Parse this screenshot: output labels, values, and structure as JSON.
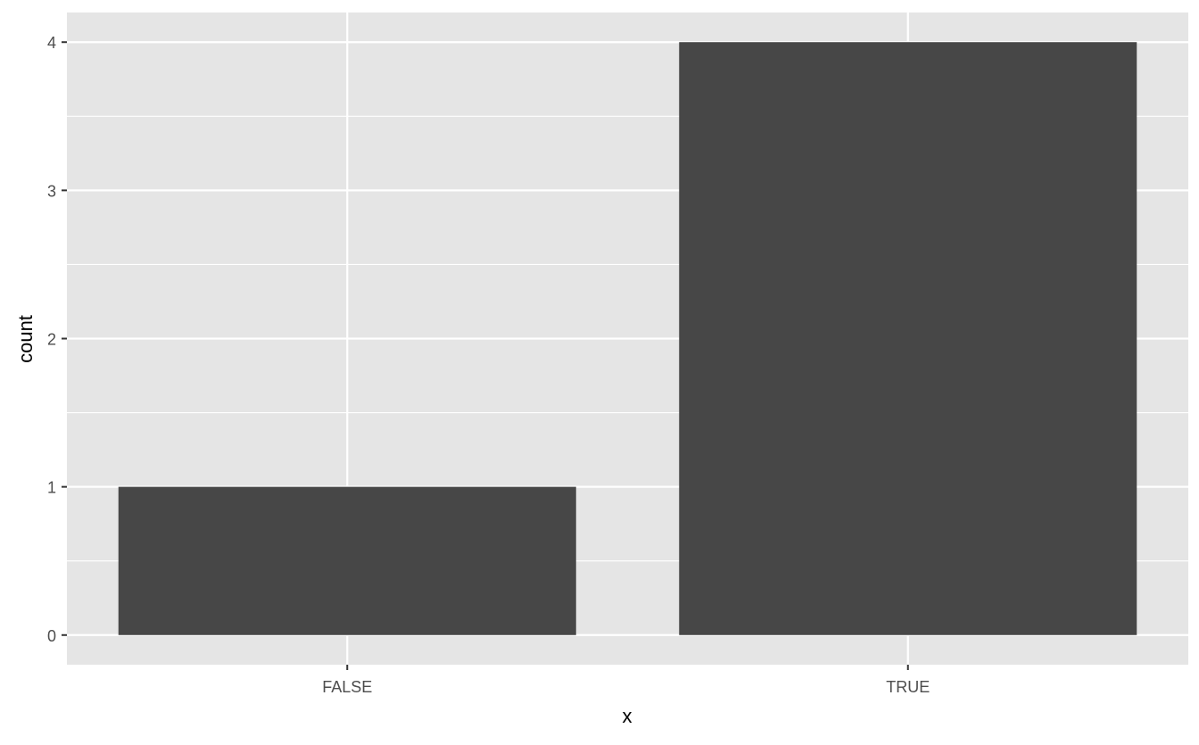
{
  "chart_data": {
    "type": "bar",
    "categories": [
      "FALSE",
      "TRUE"
    ],
    "values": [
      1,
      4
    ],
    "title": "",
    "xlabel": "x",
    "ylabel": "count",
    "ylim": [
      -0.2,
      4.2
    ],
    "yticks": [
      0,
      1,
      2,
      3,
      4
    ],
    "grid": true,
    "colors": {
      "panel": "#E5E5E5",
      "grid": "#FFFFFF",
      "bar": "#474747",
      "text": "#4D4D4D",
      "axis_title": "#000000"
    }
  }
}
